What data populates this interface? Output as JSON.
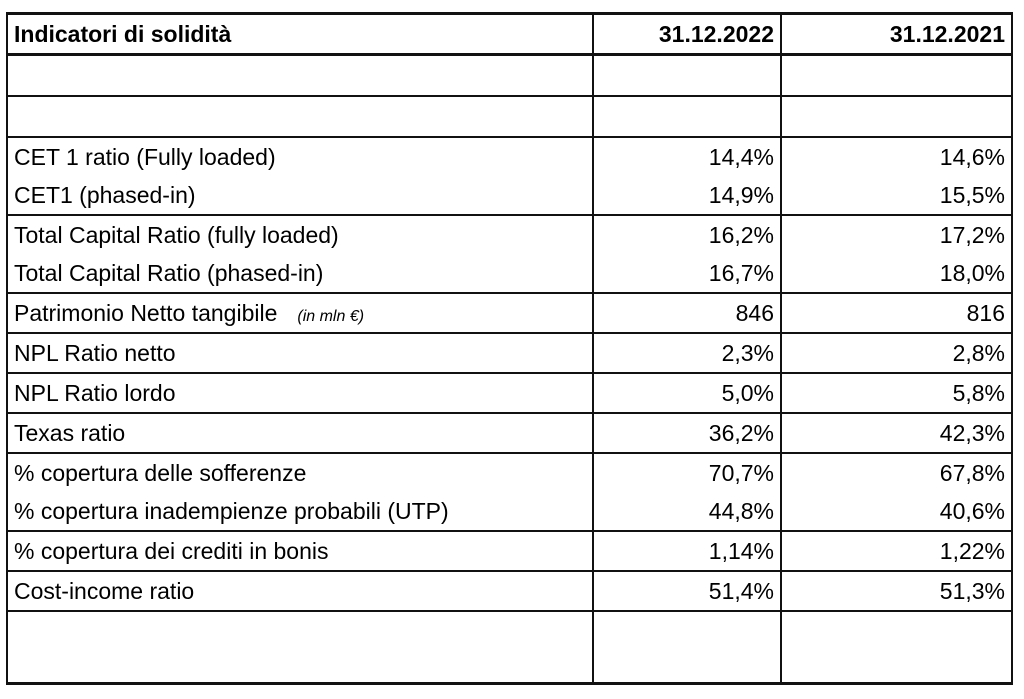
{
  "table": {
    "header": {
      "label": "Indicatori di solidità",
      "col1": "31.12.2022",
      "col2": "31.12.2021"
    },
    "rows": [
      {
        "label": "CET 1 ratio (Fully loaded)",
        "unit": "",
        "v1": "14,4%",
        "v2": "14,6%"
      },
      {
        "label": "CET1 (phased-in)",
        "unit": "",
        "v1": "14,9%",
        "v2": "15,5%"
      },
      {
        "label": "Total Capital Ratio (fully loaded)",
        "unit": "",
        "v1": "16,2%",
        "v2": "17,2%"
      },
      {
        "label": "Total Capital Ratio (phased-in)",
        "unit": "",
        "v1": "16,7%",
        "v2": "18,0%"
      },
      {
        "label": "Patrimonio Netto tangibile",
        "unit": "(in mln €)",
        "v1": "846",
        "v2": "816"
      },
      {
        "label": "NPL Ratio netto",
        "unit": "",
        "v1": "2,3%",
        "v2": "2,8%"
      },
      {
        "label": "NPL Ratio lordo",
        "unit": "",
        "v1": "5,0%",
        "v2": "5,8%"
      },
      {
        "label": "Texas ratio",
        "unit": "",
        "v1": "36,2%",
        "v2": "42,3%"
      },
      {
        "label": "% copertura delle sofferenze",
        "unit": "",
        "v1": "70,7%",
        "v2": "67,8%"
      },
      {
        "label": "% copertura inadempienze probabili (UTP)",
        "unit": "",
        "v1": "44,8%",
        "v2": "40,6%"
      },
      {
        "label": "% copertura dei crediti in bonis",
        "unit": "",
        "v1": "1,14%",
        "v2": "1,22%"
      },
      {
        "label": "Cost-income ratio",
        "unit": "",
        "v1": "51,4%",
        "v2": "51,3%"
      }
    ]
  }
}
